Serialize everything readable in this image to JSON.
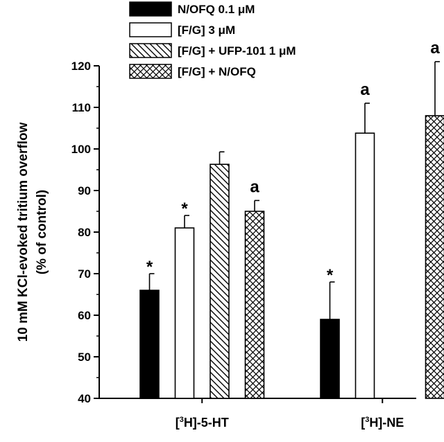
{
  "chart_data": {
    "type": "bar",
    "ylabel_line1": "10 mM KCl-evoked tritium overflow",
    "ylabel_line2": "(% of control)",
    "ylim": [
      40,
      120
    ],
    "yticks": [
      40,
      50,
      60,
      70,
      80,
      90,
      100,
      110,
      120
    ],
    "categories": [
      {
        "pre": "[",
        "sup": "3",
        "post": "H]-5-HT"
      },
      {
        "pre": "[",
        "sup": "3",
        "post": "H]-NE"
      }
    ],
    "legend_position": "top-center",
    "grid": false,
    "series": [
      {
        "name": "N/OFQ 0.1 μM",
        "fill": "solid-black",
        "values": [
          66,
          59
        ],
        "errors": [
          4,
          9
        ],
        "marks": [
          "*",
          "*"
        ]
      },
      {
        "name": "[F/G] 3 μM",
        "fill": "white",
        "values": [
          81,
          103.8
        ],
        "errors": [
          3,
          7.2
        ],
        "marks": [
          "*",
          "a"
        ]
      },
      {
        "name": "[F/G] + UFP-101 1 μM",
        "fill": "diagonal-hatch",
        "values": [
          96.3,
          null
        ],
        "errors": [
          3,
          null
        ],
        "marks": [
          "",
          ""
        ]
      },
      {
        "name": "[F/G] + N/OFQ",
        "fill": "crosshatch",
        "values": [
          85,
          108
        ],
        "errors": [
          2.6,
          13
        ],
        "marks": [
          "a",
          "a"
        ]
      }
    ]
  }
}
